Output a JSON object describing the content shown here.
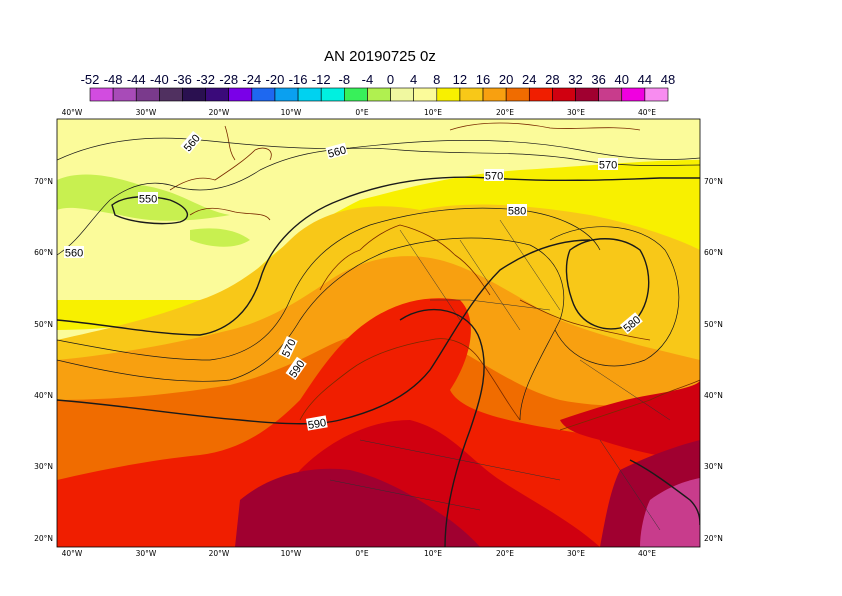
{
  "map": {
    "title": "AN  20190725 0z",
    "colorbar": {
      "labels": [
        "-52",
        "-48",
        "-44",
        "-40",
        "-36",
        "-32",
        "-28",
        "-24",
        "-20",
        "-16",
        "-12",
        "-8",
        "-4",
        "0",
        "4",
        "8",
        "12",
        "16",
        "20",
        "24",
        "28",
        "32",
        "36",
        "40",
        "44",
        "48"
      ],
      "colors": [
        "#d24ce0",
        "#a84bb8",
        "#7a3a8c",
        "#503060",
        "#2a1050",
        "#3a0a7a",
        "#7a00e8",
        "#1e68f0",
        "#0aa0f0",
        "#00d2f0",
        "#00f0e0",
        "#38f05a",
        "#b0f050",
        "#f0f8a0",
        "#fbfb9a",
        "#f8f000",
        "#f8c818",
        "#f8a010",
        "#f06c00",
        "#f01e00",
        "#d00010",
        "#a00030",
        "#c83c8c",
        "#f000e0",
        "#f88cf0"
      ]
    },
    "lon_ticks": [
      "40°W",
      "30°W",
      "20°W",
      "10°W",
      "0°E",
      "10°E",
      "20°E",
      "30°E",
      "40°E"
    ],
    "lat_ticks": [
      "70°N",
      "60°N",
      "50°N",
      "40°N",
      "30°N",
      "20°N"
    ],
    "contour_labels": [
      "550",
      "560",
      "560",
      "560",
      "570",
      "570",
      "580",
      "570",
      "580",
      "590",
      "590"
    ]
  }
}
